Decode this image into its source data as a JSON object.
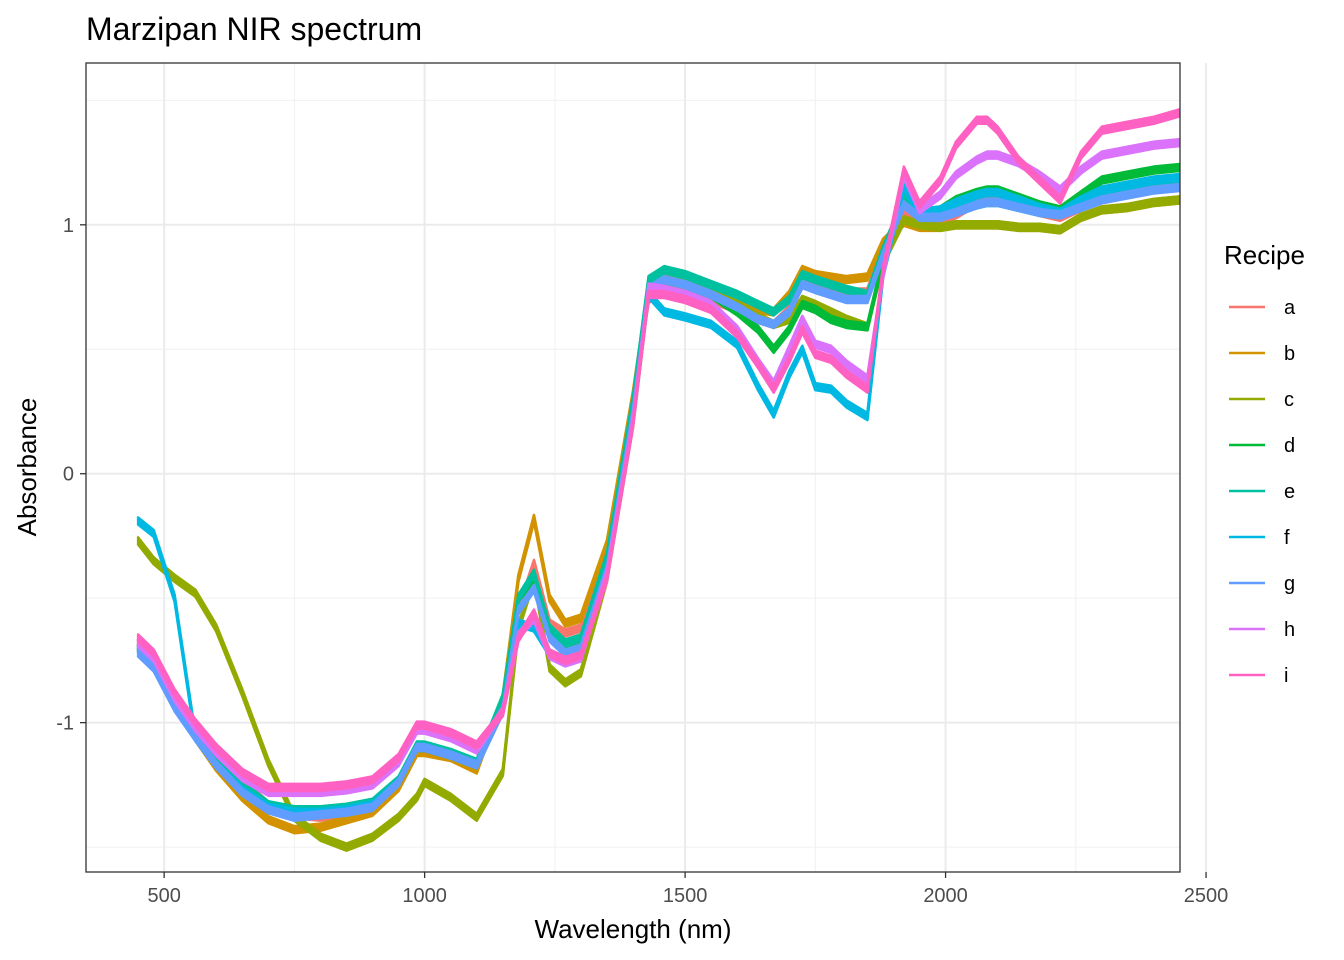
{
  "chart_data": {
    "type": "line",
    "title": "Marzipan NIR spectrum",
    "xlabel": "Wavelength (nm)",
    "ylabel": "Absorbance",
    "xlim": [
      350,
      2450
    ],
    "ylim": [
      -1.6,
      1.65
    ],
    "x_ticks": [
      {
        "value": 500,
        "label": "500"
      },
      {
        "value": 1000,
        "label": "1000"
      },
      {
        "value": 1500,
        "label": "1500"
      },
      {
        "value": 2000,
        "label": "2000"
      },
      {
        "value": 2500,
        "label": "2500"
      }
    ],
    "y_ticks": [
      {
        "value": -1,
        "label": "-1"
      },
      {
        "value": 0,
        "label": "0"
      },
      {
        "value": 1,
        "label": "1"
      }
    ],
    "grid": true,
    "legend": {
      "title": "Recipe",
      "position": "right"
    },
    "x": [
      450,
      480,
      520,
      560,
      600,
      650,
      700,
      750,
      800,
      850,
      900,
      950,
      985,
      1000,
      1050,
      1100,
      1150,
      1180,
      1210,
      1240,
      1270,
      1300,
      1350,
      1400,
      1430,
      1460,
      1500,
      1550,
      1600,
      1640,
      1670,
      1700,
      1725,
      1750,
      1780,
      1810,
      1850,
      1880,
      1920,
      1950,
      1990,
      2020,
      2060,
      2080,
      2100,
      2140,
      2180,
      2220,
      2260,
      2300,
      2350,
      2400,
      2450
    ],
    "series": [
      {
        "name": "a",
        "color": "#F8766D",
        "values": [
          -0.68,
          -0.74,
          -0.9,
          -1.02,
          -1.13,
          -1.24,
          -1.33,
          -1.37,
          -1.38,
          -1.36,
          -1.34,
          -1.24,
          -1.1,
          -1.1,
          -1.12,
          -1.17,
          -0.95,
          -0.55,
          -0.36,
          -0.6,
          -0.64,
          -0.62,
          -0.32,
          0.3,
          0.7,
          0.75,
          0.73,
          0.7,
          0.66,
          0.62,
          0.6,
          0.66,
          0.76,
          0.75,
          0.74,
          0.73,
          0.73,
          0.9,
          1.05,
          1.03,
          1.02,
          1.04,
          1.09,
          1.1,
          1.1,
          1.08,
          1.05,
          1.03,
          1.07,
          1.12,
          1.14,
          1.16,
          1.17
        ]
      },
      {
        "name": "b",
        "color": "#D39200",
        "values": [
          -0.7,
          -0.76,
          -0.92,
          -1.06,
          -1.18,
          -1.3,
          -1.39,
          -1.43,
          -1.42,
          -1.39,
          -1.36,
          -1.26,
          -1.12,
          -1.12,
          -1.14,
          -1.19,
          -0.9,
          -0.42,
          -0.18,
          -0.5,
          -0.6,
          -0.58,
          -0.28,
          0.32,
          0.75,
          0.8,
          0.79,
          0.75,
          0.7,
          0.66,
          0.65,
          0.72,
          0.82,
          0.8,
          0.79,
          0.78,
          0.79,
          0.93,
          1.01,
          0.99,
          0.99,
          1.0,
          1.0,
          1.0,
          1.0,
          0.99,
          0.99,
          0.98,
          1.03,
          1.06,
          1.07,
          1.09,
          1.1
        ]
      },
      {
        "name": "c",
        "color": "#93AA00",
        "values": [
          -0.27,
          -0.35,
          -0.42,
          -0.48,
          -0.62,
          -0.88,
          -1.16,
          -1.38,
          -1.46,
          -1.5,
          -1.46,
          -1.38,
          -1.3,
          -1.24,
          -1.3,
          -1.38,
          -1.2,
          -0.62,
          -0.42,
          -0.78,
          -0.84,
          -0.8,
          -0.42,
          0.2,
          0.72,
          0.78,
          0.76,
          0.72,
          0.68,
          0.63,
          0.6,
          0.62,
          0.7,
          0.68,
          0.65,
          0.62,
          0.59,
          0.85,
          1.02,
          1.0,
          0.99,
          1.0,
          1.0,
          1.0,
          1.0,
          0.99,
          0.99,
          0.98,
          1.03,
          1.06,
          1.07,
          1.09,
          1.1
        ]
      },
      {
        "name": "d",
        "color": "#00BA38",
        "values": [
          -0.7,
          -0.76,
          -0.92,
          -1.04,
          -1.15,
          -1.26,
          -1.34,
          -1.36,
          -1.36,
          -1.35,
          -1.33,
          -1.24,
          -1.1,
          -1.1,
          -1.13,
          -1.17,
          -0.9,
          -0.5,
          -0.42,
          -0.64,
          -0.7,
          -0.68,
          -0.35,
          0.28,
          0.74,
          0.78,
          0.76,
          0.72,
          0.65,
          0.58,
          0.5,
          0.58,
          0.68,
          0.66,
          0.62,
          0.6,
          0.59,
          0.86,
          1.13,
          1.04,
          1.06,
          1.1,
          1.13,
          1.14,
          1.14,
          1.11,
          1.08,
          1.06,
          1.12,
          1.18,
          1.2,
          1.22,
          1.23
        ]
      },
      {
        "name": "e",
        "color": "#00C19F",
        "values": [
          -0.7,
          -0.76,
          -0.92,
          -1.04,
          -1.15,
          -1.25,
          -1.33,
          -1.35,
          -1.35,
          -1.34,
          -1.32,
          -1.23,
          -1.09,
          -1.09,
          -1.12,
          -1.16,
          -0.9,
          -0.5,
          -0.4,
          -0.62,
          -0.68,
          -0.66,
          -0.33,
          0.3,
          0.78,
          0.82,
          0.8,
          0.76,
          0.72,
          0.68,
          0.65,
          0.7,
          0.8,
          0.78,
          0.76,
          0.74,
          0.72,
          0.9,
          1.1,
          1.05,
          1.04,
          1.06,
          1.08,
          1.09,
          1.09,
          1.07,
          1.05,
          1.04,
          1.08,
          1.12,
          1.13,
          1.15,
          1.16
        ]
      },
      {
        "name": "f",
        "color": "#00B9E3",
        "values": [
          -0.19,
          -0.24,
          -0.5,
          -1.06,
          -1.17,
          -1.27,
          -1.34,
          -1.36,
          -1.36,
          -1.35,
          -1.33,
          -1.24,
          -1.1,
          -1.1,
          -1.13,
          -1.17,
          -0.95,
          -0.6,
          -0.62,
          -0.72,
          -0.75,
          -0.72,
          -0.4,
          0.22,
          0.72,
          0.65,
          0.63,
          0.6,
          0.52,
          0.35,
          0.24,
          0.4,
          0.5,
          0.35,
          0.34,
          0.28,
          0.23,
          0.8,
          1.15,
          1.05,
          1.06,
          1.09,
          1.12,
          1.13,
          1.13,
          1.1,
          1.07,
          1.05,
          1.1,
          1.14,
          1.16,
          1.18,
          1.19
        ]
      },
      {
        "name": "g",
        "color": "#619CFF",
        "values": [
          -0.72,
          -0.78,
          -0.94,
          -1.06,
          -1.17,
          -1.28,
          -1.35,
          -1.38,
          -1.37,
          -1.36,
          -1.34,
          -1.24,
          -1.1,
          -1.1,
          -1.13,
          -1.17,
          -0.95,
          -0.55,
          -0.46,
          -0.66,
          -0.72,
          -0.7,
          -0.38,
          0.25,
          0.74,
          0.78,
          0.76,
          0.72,
          0.67,
          0.62,
          0.6,
          0.65,
          0.76,
          0.74,
          0.72,
          0.7,
          0.7,
          0.88,
          1.08,
          1.03,
          1.03,
          1.05,
          1.08,
          1.09,
          1.09,
          1.07,
          1.05,
          1.04,
          1.07,
          1.1,
          1.12,
          1.14,
          1.15
        ]
      },
      {
        "name": "h",
        "color": "#DB72FB",
        "values": [
          -0.68,
          -0.74,
          -0.9,
          -1.02,
          -1.12,
          -1.22,
          -1.28,
          -1.28,
          -1.28,
          -1.27,
          -1.25,
          -1.16,
          -1.03,
          -1.03,
          -1.06,
          -1.11,
          -0.95,
          -0.65,
          -0.58,
          -0.73,
          -0.76,
          -0.74,
          -0.4,
          0.22,
          0.75,
          0.74,
          0.72,
          0.68,
          0.58,
          0.45,
          0.36,
          0.5,
          0.62,
          0.52,
          0.5,
          0.44,
          0.38,
          0.8,
          1.2,
          1.06,
          1.12,
          1.2,
          1.26,
          1.28,
          1.28,
          1.25,
          1.2,
          1.14,
          1.22,
          1.28,
          1.3,
          1.32,
          1.33
        ]
      },
      {
        "name": "i",
        "color": "#FF61C3",
        "values": [
          -0.66,
          -0.72,
          -0.88,
          -1.0,
          -1.1,
          -1.2,
          -1.26,
          -1.26,
          -1.26,
          -1.25,
          -1.23,
          -1.14,
          -1.01,
          -1.01,
          -1.04,
          -1.09,
          -0.96,
          -0.66,
          -0.56,
          -0.72,
          -0.75,
          -0.73,
          -0.42,
          0.2,
          0.72,
          0.72,
          0.7,
          0.66,
          0.56,
          0.44,
          0.34,
          0.46,
          0.58,
          0.48,
          0.46,
          0.4,
          0.34,
          0.82,
          1.22,
          1.08,
          1.18,
          1.32,
          1.42,
          1.42,
          1.38,
          1.26,
          1.18,
          1.1,
          1.28,
          1.38,
          1.4,
          1.42,
          1.45
        ]
      }
    ]
  }
}
